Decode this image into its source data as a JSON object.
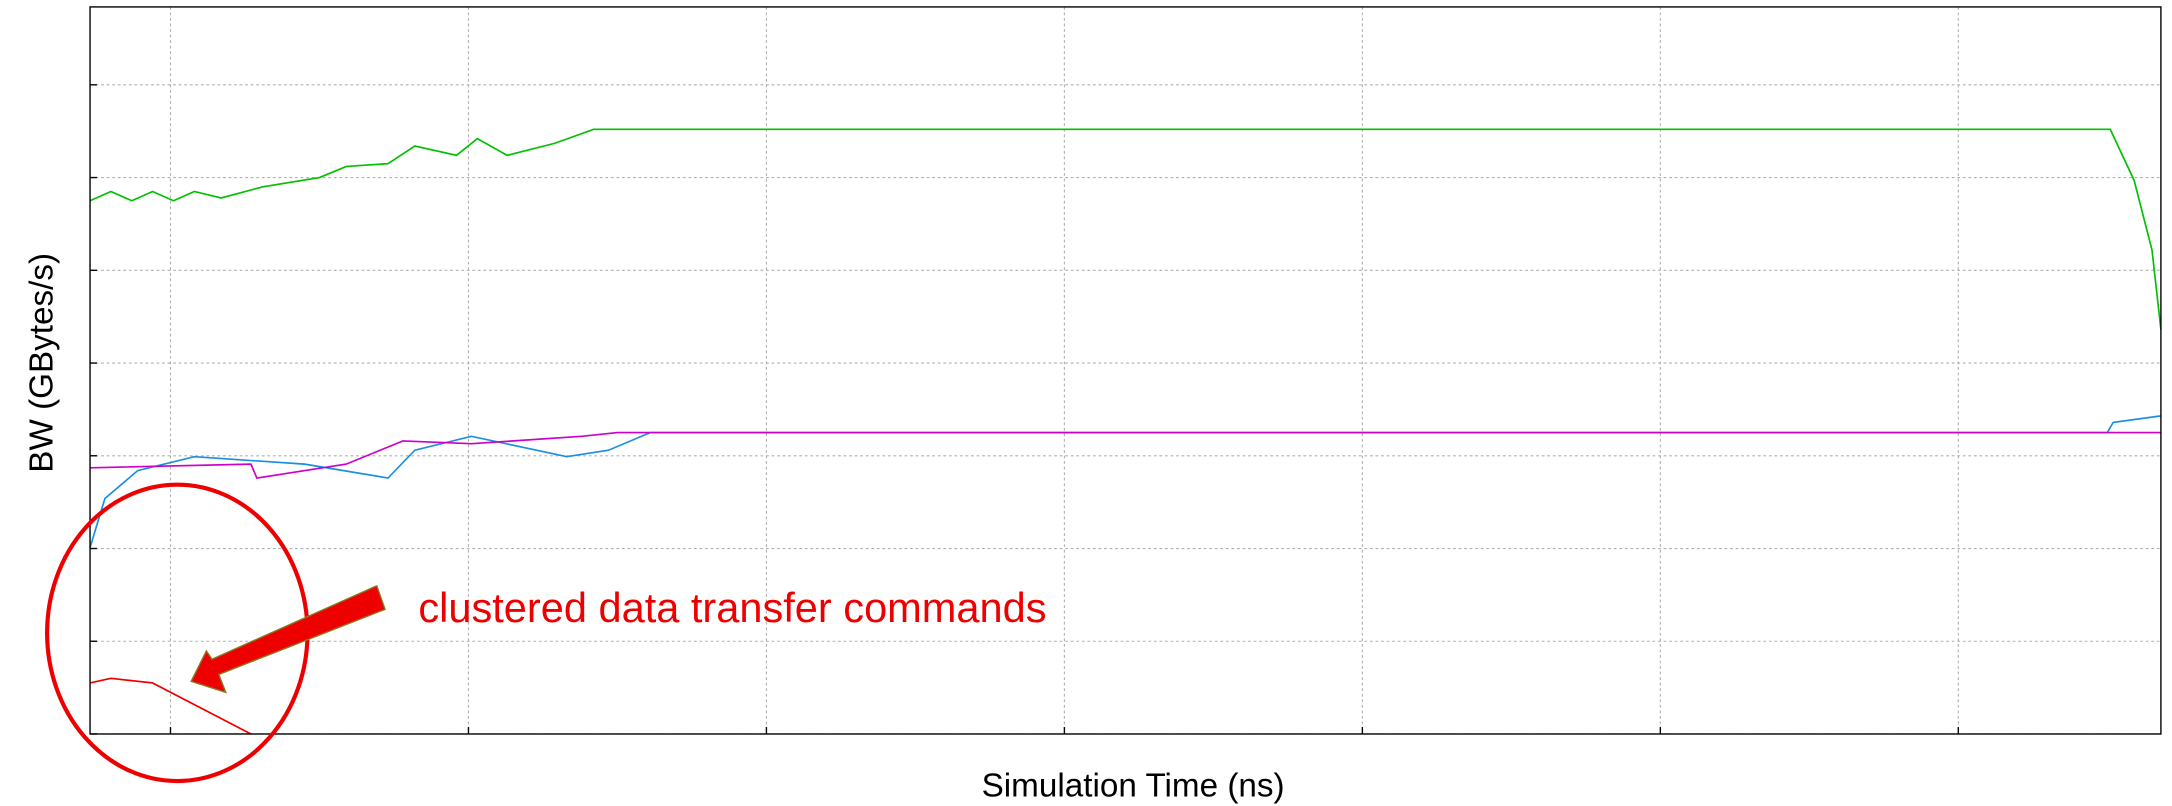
{
  "chart_data": {
    "type": "line",
    "ylabel": "BW (GBytes/s)",
    "xlabel": "Simulation Time (ns)",
    "annotation": "clustered data transfer commands",
    "xlim": [
      -0.27,
      6.68
    ],
    "ylim": [
      0,
      7.84
    ],
    "xticks": [
      0,
      1,
      2,
      3,
      4,
      5,
      6
    ],
    "yticks": [
      0,
      1,
      2,
      3,
      4,
      5,
      6,
      7
    ],
    "grid": true,
    "series": [
      {
        "color": "#00c000",
        "x": [
          -0.27,
          -0.2,
          -0.13,
          -0.06,
          0.01,
          0.08,
          0.17,
          0.31,
          0.5,
          0.59,
          0.73,
          0.82,
          0.96,
          1.03,
          1.13,
          1.29,
          1.42,
          6.51,
          6.59,
          6.65,
          6.68
        ],
        "values": [
          5.75,
          5.85,
          5.75,
          5.85,
          5.75,
          5.85,
          5.78,
          5.9,
          6.0,
          6.12,
          6.15,
          6.34,
          6.24,
          6.42,
          6.24,
          6.37,
          6.52,
          6.52,
          5.97,
          5.22,
          4.36
        ]
      },
      {
        "color": "#1a8fe0",
        "x": [
          -0.27,
          -0.22,
          -0.11,
          0.08,
          0.45,
          0.73,
          0.82,
          1.01,
          1.33,
          1.47,
          1.61,
          6.5,
          6.52,
          6.68
        ],
        "values": [
          2.01,
          2.54,
          2.84,
          2.99,
          2.91,
          2.76,
          3.06,
          3.21,
          2.99,
          3.06,
          3.25,
          3.25,
          3.36,
          3.43
        ]
      },
      {
        "color": "#cc00cc",
        "x": [
          -0.27,
          0.27,
          0.29,
          0.59,
          0.78,
          1.01,
          1.38,
          1.5,
          6.68
        ],
        "values": [
          2.87,
          2.91,
          2.76,
          2.91,
          3.16,
          3.13,
          3.21,
          3.25,
          3.25
        ]
      },
      {
        "color": "#ee0000",
        "x": [
          -0.27,
          -0.2,
          -0.06,
          0.27
        ],
        "values": [
          0.55,
          0.6,
          0.55,
          0
        ]
      }
    ]
  }
}
